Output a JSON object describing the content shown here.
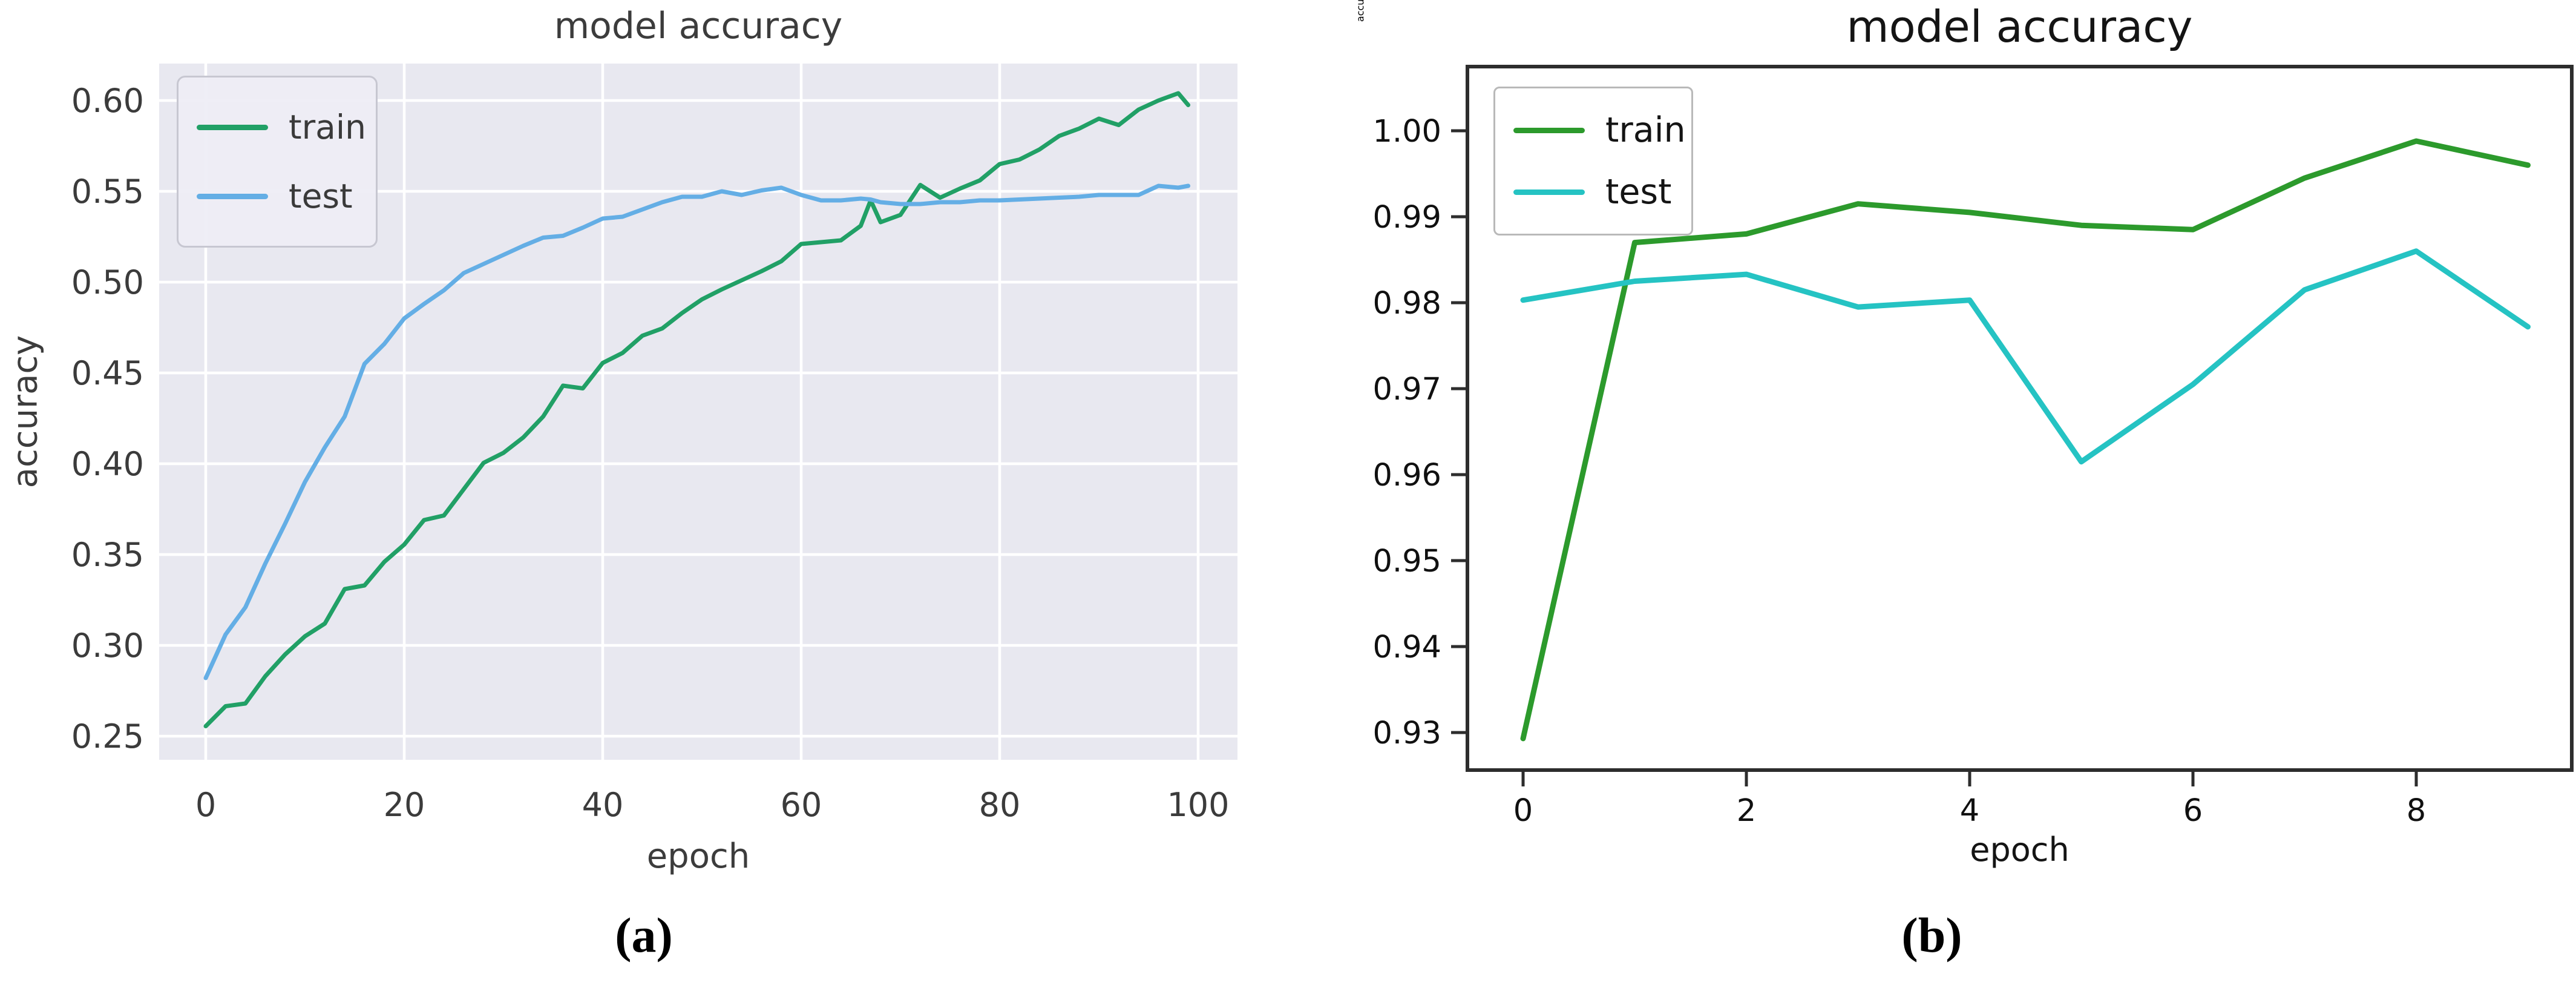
{
  "chart_data": [
    {
      "id": "a",
      "type": "line",
      "title": "model accuracy",
      "xlabel": "epoch",
      "ylabel": "accuracy",
      "caption": "(a)",
      "style": "seaborn-darkgrid",
      "plot_bg_color": "#e8e8f0",
      "grid_color": "#ffffff",
      "grid": true,
      "tick_color": "#3b3b3b",
      "legend_position": "upper left",
      "xlim": [
        -4.7,
        104
      ],
      "ylim": [
        0.237,
        0.62
      ],
      "xticks": {
        "values": [
          0,
          20,
          40,
          60,
          80,
          100
        ],
        "labels": [
          "0",
          "20",
          "40",
          "60",
          "80",
          "100"
        ]
      },
      "yticks": {
        "values": [
          0.25,
          0.3,
          0.35,
          0.4,
          0.45,
          0.5,
          0.55,
          0.6
        ],
        "labels": [
          "0.25",
          "0.30",
          "0.35",
          "0.40",
          "0.45",
          "0.50",
          "0.55",
          "0.60"
        ]
      },
      "x": [
        0,
        2,
        4,
        6,
        8,
        10,
        12,
        14,
        16,
        18,
        20,
        22,
        24,
        26,
        28,
        30,
        32,
        34,
        36,
        38,
        40,
        42,
        44,
        46,
        48,
        50,
        52,
        54,
        56,
        58,
        60,
        62,
        64,
        66,
        67,
        68,
        70,
        72,
        74,
        76,
        78,
        80,
        82,
        84,
        86,
        88,
        90,
        92,
        94,
        96,
        98,
        99
      ],
      "series": [
        {
          "name": "train",
          "color": "#21a066",
          "values": [
            0.2555,
            0.2665,
            0.268,
            0.283,
            0.295,
            0.305,
            0.312,
            0.331,
            0.333,
            0.346,
            0.3555,
            0.369,
            0.3715,
            0.386,
            0.4005,
            0.406,
            0.4145,
            0.426,
            0.443,
            0.4415,
            0.4555,
            0.461,
            0.4705,
            0.4745,
            0.483,
            0.4905,
            0.496,
            0.501,
            0.506,
            0.5115,
            0.521,
            0.522,
            0.523,
            0.531,
            0.545,
            0.533,
            0.537,
            0.5535,
            0.5465,
            0.5515,
            0.556,
            0.565,
            0.5675,
            0.573,
            0.5805,
            0.5845,
            0.59,
            0.5865,
            0.595,
            0.6,
            0.604,
            0.5975
          ]
        },
        {
          "name": "test",
          "color": "#64aee5",
          "values": [
            0.282,
            0.306,
            0.321,
            0.345,
            0.367,
            0.39,
            0.409,
            0.426,
            0.455,
            0.466,
            0.48,
            0.488,
            0.4955,
            0.505,
            0.51,
            0.515,
            0.52,
            0.5245,
            0.5255,
            0.53,
            0.535,
            0.536,
            0.54,
            0.544,
            0.547,
            0.547,
            0.55,
            0.548,
            0.5505,
            0.552,
            0.548,
            0.545,
            0.545,
            0.546,
            0.5455,
            0.544,
            0.543,
            0.543,
            0.544,
            0.544,
            0.545,
            0.545,
            0.5455,
            0.546,
            0.5465,
            0.547,
            0.548,
            0.548,
            0.548,
            0.553,
            0.552,
            0.553
          ]
        }
      ]
    },
    {
      "id": "b",
      "type": "line",
      "title": "model accuracy",
      "xlabel": "epoch",
      "ylabel": "accuracy",
      "caption": "(b)",
      "style": "matplotlib-classic",
      "plot_bg_color": "#ffffff",
      "grid": false,
      "spine_color": "#2d2d2d",
      "tick_color": "#101010",
      "legend_position": "upper left",
      "xlim": [
        -0.45,
        9.45
      ],
      "ylim": [
        0.9255,
        1.0075
      ],
      "xticks": {
        "values": [
          0,
          2,
          4,
          6,
          8
        ],
        "labels": [
          "0",
          "2",
          "4",
          "6",
          "8"
        ]
      },
      "yticks": {
        "values": [
          0.93,
          0.94,
          0.95,
          0.96,
          0.97,
          0.98,
          0.99,
          1.0
        ],
        "labels": [
          "0.93",
          "0.94",
          "0.95",
          "0.96",
          "0.97",
          "0.98",
          "0.99",
          "1.00"
        ]
      },
      "x": [
        0,
        1,
        2,
        3,
        4,
        5,
        6,
        7,
        8,
        9
      ],
      "series": [
        {
          "name": "train",
          "color": "#2c9a2c",
          "values": [
            0.9293,
            0.987,
            0.988,
            0.9915,
            0.9905,
            0.989,
            0.9885,
            0.9945,
            0.9988,
            0.996
          ]
        },
        {
          "name": "test",
          "color": "#25c3c3",
          "values": [
            0.9803,
            0.9825,
            0.9833,
            0.9795,
            0.9803,
            0.9615,
            0.9705,
            0.9815,
            0.986,
            0.9772
          ]
        }
      ]
    }
  ]
}
